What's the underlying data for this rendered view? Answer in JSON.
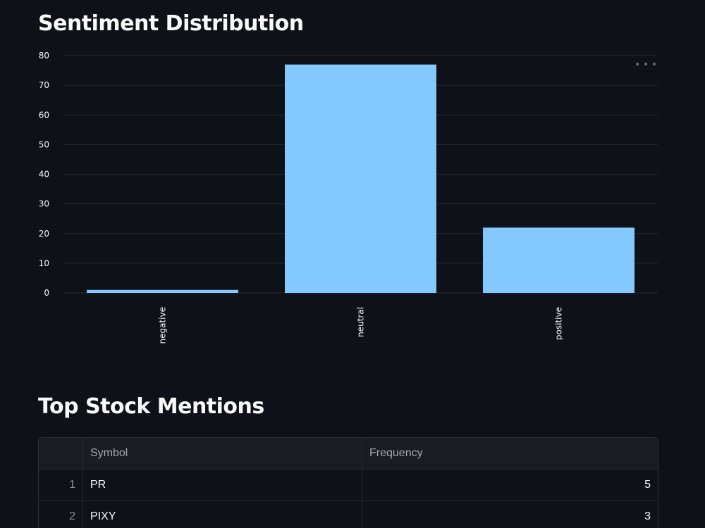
{
  "sections": {
    "sentiment_title": "Sentiment Distribution",
    "mentions_title": "Top Stock Mentions"
  },
  "chart_data": {
    "type": "bar",
    "categories": [
      "negative",
      "neutral",
      "positive"
    ],
    "values": [
      1,
      77,
      22
    ],
    "ylim": [
      0,
      80
    ],
    "yticks": [
      0,
      10,
      20,
      30,
      40,
      50,
      60,
      70,
      80
    ],
    "xlabel": "",
    "ylabel": "",
    "grid": true,
    "bar_color": "#83c9ff"
  },
  "chart_menu_icon": "more-horizontal-icon",
  "table": {
    "columns": [
      "",
      "Symbol",
      "Frequency"
    ],
    "rows": [
      {
        "index": "1",
        "symbol": "PR",
        "frequency": "5"
      },
      {
        "index": "2",
        "symbol": "PIXY",
        "frequency": "3"
      }
    ]
  },
  "colors": {
    "background": "#0e1117",
    "bar": "#83c9ff",
    "grid": "#262a33"
  }
}
